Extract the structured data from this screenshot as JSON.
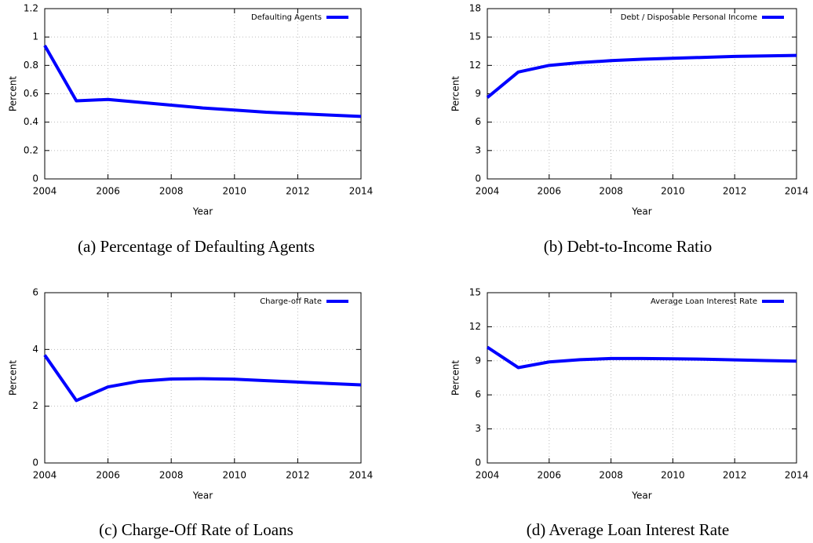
{
  "chart_data": [
    {
      "type": "line",
      "caption": "(a) Percentage of Defaulting Agents",
      "xlabel": "Year",
      "ylabel": "Percent",
      "x": [
        2004,
        2005,
        2006,
        2007,
        2008,
        2009,
        2010,
        2011,
        2012,
        2013,
        2014
      ],
      "series": [
        {
          "name": "Defaulting Agents",
          "color": "#0000ff",
          "values": [
            0.94,
            0.55,
            0.56,
            0.54,
            0.52,
            0.5,
            0.485,
            0.47,
            0.46,
            0.45,
            0.44
          ]
        }
      ],
      "xlim": [
        2004,
        2014
      ],
      "xticks": [
        2004,
        2006,
        2008,
        2010,
        2012,
        2014
      ],
      "ylim": [
        0,
        1.2
      ],
      "yticks": [
        0,
        0.2,
        0.4,
        0.6,
        0.8,
        1,
        1.2
      ],
      "grid": true,
      "legend": "top-right"
    },
    {
      "type": "line",
      "caption": "(b) Debt-to-Income Ratio",
      "xlabel": "Year",
      "ylabel": "Percent",
      "x": [
        2004,
        2005,
        2006,
        2007,
        2008,
        2009,
        2010,
        2011,
        2012,
        2013,
        2014
      ],
      "series": [
        {
          "name": "Debt / Disposable Personal Income",
          "color": "#0000ff",
          "values": [
            8.6,
            11.3,
            12.0,
            12.3,
            12.5,
            12.65,
            12.75,
            12.85,
            12.95,
            13.0,
            13.05
          ]
        }
      ],
      "xlim": [
        2004,
        2014
      ],
      "xticks": [
        2004,
        2006,
        2008,
        2010,
        2012,
        2014
      ],
      "ylim": [
        0,
        18
      ],
      "yticks": [
        0,
        3,
        6,
        9,
        12,
        15,
        18
      ],
      "grid": true,
      "legend": "top-right"
    },
    {
      "type": "line",
      "caption": "(c) Charge-Off Rate of Loans",
      "xlabel": "Year",
      "ylabel": "Percent",
      "x": [
        2004,
        2005,
        2006,
        2007,
        2008,
        2009,
        2010,
        2011,
        2012,
        2013,
        2014
      ],
      "series": [
        {
          "name": "Charge-off Rate",
          "color": "#0000ff",
          "values": [
            3.8,
            2.2,
            2.68,
            2.88,
            2.96,
            2.97,
            2.95,
            2.9,
            2.85,
            2.8,
            2.75
          ]
        }
      ],
      "xlim": [
        2004,
        2014
      ],
      "xticks": [
        2004,
        2006,
        2008,
        2010,
        2012,
        2014
      ],
      "ylim": [
        0,
        6
      ],
      "yticks": [
        0,
        2,
        4,
        6
      ],
      "grid": true,
      "legend": "top-right"
    },
    {
      "type": "line",
      "caption": "(d) Average Loan Interest Rate",
      "xlabel": "Year",
      "ylabel": "Percent",
      "x": [
        2004,
        2005,
        2006,
        2007,
        2008,
        2009,
        2010,
        2011,
        2012,
        2013,
        2014
      ],
      "series": [
        {
          "name": "Average Loan Interest Rate",
          "color": "#0000ff",
          "values": [
            10.2,
            8.4,
            8.9,
            9.1,
            9.2,
            9.2,
            9.18,
            9.14,
            9.08,
            9.02,
            8.97
          ]
        }
      ],
      "xlim": [
        2004,
        2014
      ],
      "xticks": [
        2004,
        2006,
        2008,
        2010,
        2012,
        2014
      ],
      "ylim": [
        0,
        15
      ],
      "yticks": [
        0,
        3,
        6,
        9,
        12,
        15
      ],
      "grid": true,
      "legend": "top-right"
    }
  ]
}
